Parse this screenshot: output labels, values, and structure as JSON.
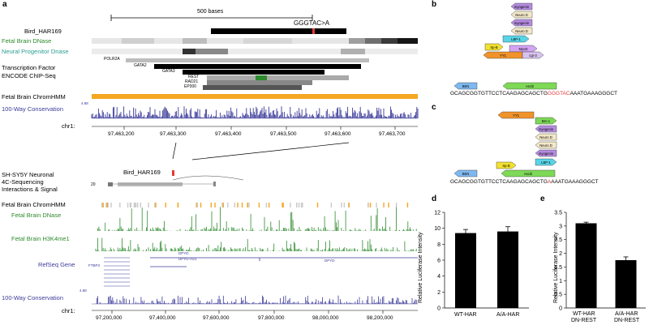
{
  "panel_letters": [
    "a",
    "b",
    "c",
    "d",
    "e"
  ],
  "scale_label": "500 bases",
  "top_tracks": {
    "bird_har": "Bird_HAR169",
    "variant": "GGGTAC>A",
    "fetal_dnase": "Fetal Brain DNase",
    "neural_dnase": "Neural Progenitor Dnase",
    "tf_line1": "Transcription Factor",
    "tf_line2": "ENCODE ChIP-Seq",
    "tf_names": [
      "POLR2A",
      "GATA2",
      "GATA3",
      "REST",
      "RAD21",
      "EP300"
    ],
    "chromhmm": "Fetal Brain ChromHMM",
    "conservation": "100-Way Conservation",
    "cons_max": "4.88",
    "chrom": "chr1:",
    "ticks": [
      "97,463,200",
      "97,463,300",
      "97,463,400",
      "97,463,500",
      "97,463,600",
      "97,463,700"
    ]
  },
  "bottom_tracks": {
    "sh_line1": "SH-SY5Y Neuronal",
    "sh_line2": "4C-Sequencing",
    "sh_line3": "Interactions & Signal",
    "bird_har": "Bird_HAR169",
    "signal_max": "20",
    "chromhmm": "Fetal Brain ChromHMM",
    "fetal_dnase": "Fetal Brain DNase",
    "h3k4me1": "Fetal Brain H3K4me1",
    "refseq": "RefSeq Gene",
    "genes": [
      "FTBP3",
      "DPYD",
      "DPYD-AS1",
      "DPYD"
    ],
    "conservation": "100-Way Conservation",
    "cons_max": "4.88",
    "chrom": "chr1:",
    "ticks": [
      "97,200,000",
      "97,400,000",
      "97,600,000",
      "97,800,000",
      "98,000,000",
      "98,200,000"
    ]
  },
  "motifs_b": {
    "labels": [
      "myogenin",
      "Neuro D",
      "myogenin",
      "Neuro D",
      "LBP-1",
      "Sp-B",
      "MyoD",
      "YY1",
      "cgr-3",
      "BEN",
      "Ascl2"
    ],
    "sequence": "GCAGCGGTGTTCCTCAAGAGCAGCTG",
    "sequence_highlight": "GGGTAC",
    "sequence_tail": "AAATGAAAGGGCT"
  },
  "motifs_c": {
    "labels": [
      "YY1",
      "Brn-1",
      "myogenin",
      "Neuro D",
      "Neuro D",
      "myogenin",
      "LBP-1",
      "Sp-B",
      "BEN",
      "Ascl2"
    ],
    "sequence": "GCAGCGGTGTTCCTCAAGAGCAGCTG",
    "sequence_highlight": "A",
    "sequence_tail": "AAATGAAAGGGCT"
  },
  "chart_data": [
    {
      "type": "bar",
      "categories": [
        "WT-HAR",
        "A/A-HAR"
      ],
      "values": [
        9.4,
        9.6
      ],
      "errors": [
        0.45,
        0.6
      ],
      "ylabel": "Relative Luciferase Intensity",
      "ylim": [
        0,
        12
      ],
      "yticks": [
        0,
        2,
        4,
        6,
        8,
        10,
        12
      ]
    },
    {
      "type": "bar",
      "categories": [
        "WT-HAR DN-REST",
        "A/A-HAR DN-REST"
      ],
      "category_lines": [
        [
          "WT-HAR",
          "DN-REST"
        ],
        [
          "A/A-HAR",
          "DN-REST"
        ]
      ],
      "values": [
        3.1,
        1.75
      ],
      "errors": [
        0.04,
        0.12
      ],
      "ylabel": "Relative Luciferase Intensity",
      "ylim": [
        0,
        3.5
      ],
      "yticks": [
        0,
        0.5,
        1,
        1.5,
        2,
        2.5,
        3,
        3.5
      ]
    }
  ],
  "colors": {
    "green": "#2e8b2e",
    "teal": "#2a9d8f",
    "navy": "#3b3b9a",
    "orange": "#f5a623",
    "red": "#e53935"
  }
}
